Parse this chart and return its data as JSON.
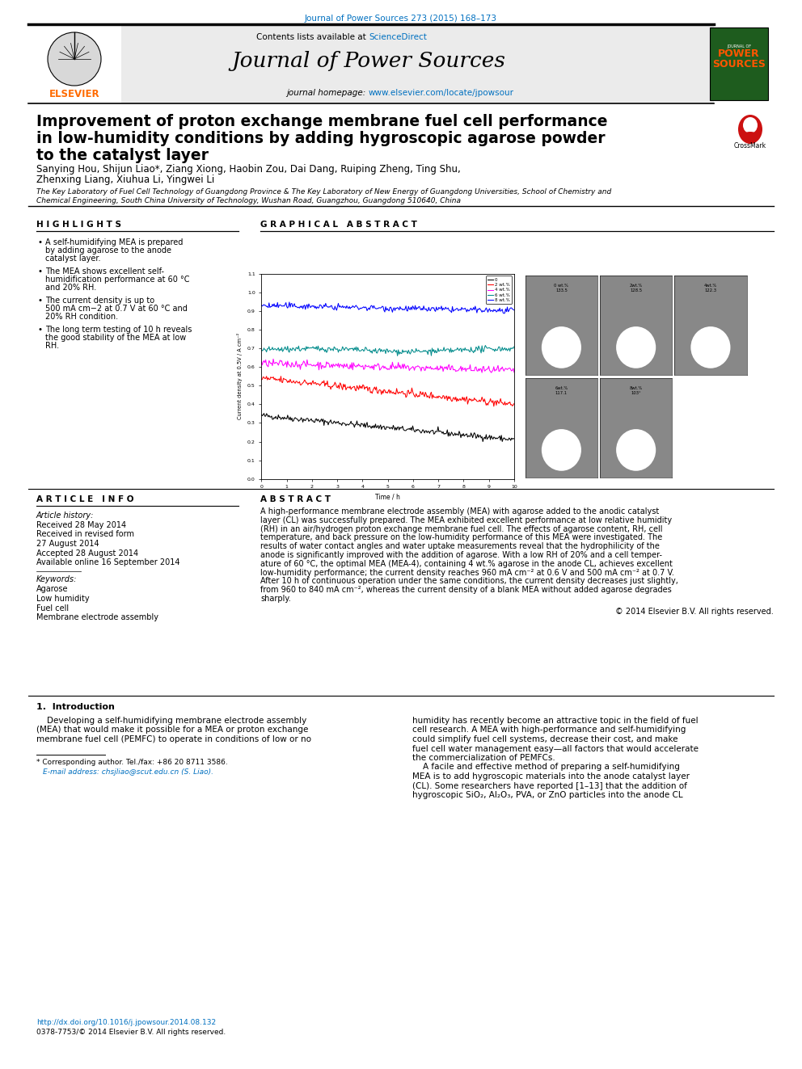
{
  "page_title": "Journal of Power Sources 273 (2015) 168–173",
  "journal_name": "Journal of Power Sources",
  "sciencedirect_text": "Contents lists available at ScienceDirect",
  "journal_homepage_prefix": "journal homepage: ",
  "journal_homepage_url": "www.elsevier.com/locate/jpowsour",
  "paper_title_lines": [
    "Improvement of proton exchange membrane fuel cell performance",
    "in low-humidity conditions by adding hygroscopic agarose powder",
    "to the catalyst layer"
  ],
  "authors_line1": "Sanying Hou, Shijun Liao*, Ziang Xiong, Haobin Zou, Dai Dang, Ruiping Zheng, Ting Shu,",
  "authors_line2": "Zhenxing Liang, Xiuhua Li, Yingwei Li",
  "affiliation_line1": "The Key Laboratory of Fuel Cell Technology of Guangdong Province & The Key Laboratory of New Energy of Guangdong Universities, School of Chemistry and",
  "affiliation_line2": "Chemical Engineering, South China University of Technology, Wushan Road, Guangzhou, Guangdong 510640, China",
  "highlights_title": "H I G H L I G H T S",
  "highlights": [
    "A self-humidifying MEA is prepared\nby adding agarose to the anode\ncatalyst layer.",
    "The MEA shows excellent self-\nhumidification performance at 60 °C\nand 20% RH.",
    "The current density is up to\n500 mA cm−2 at 0.7 V at 60 °C and\n20% RH condition.",
    "The long term testing of 10 h reveals\nthe good stability of the MEA at low\nRH."
  ],
  "graphical_abstract_title": "G R A P H I C A L   A B S T R A C T",
  "article_info_title": "A R T I C L E   I N F O",
  "article_history_title": "Article history:",
  "article_history": [
    "Received 28 May 2014",
    "Received in revised form",
    "27 August 2014",
    "Accepted 28 August 2014",
    "Available online 16 September 2014"
  ],
  "keywords_title": "Keywords:",
  "keywords": [
    "Agarose",
    "Low humidity",
    "Fuel cell",
    "Membrane electrode assembly"
  ],
  "abstract_title": "A B S T R A C T",
  "abstract_lines": [
    "A high-performance membrane electrode assembly (MEA) with agarose added to the anodic catalyst",
    "layer (CL) was successfully prepared. The MEA exhibited excellent performance at low relative humidity",
    "(RH) in an air/hydrogen proton exchange membrane fuel cell. The effects of agarose content, RH, cell",
    "temperature, and back pressure on the low-humidity performance of this MEA were investigated. The",
    "results of water contact angles and water uptake measurements reveal that the hydrophilicity of the",
    "anode is significantly improved with the addition of agarose. With a low RH of 20% and a cell temper-",
    "ature of 60 °C, the optimal MEA (MEA-4), containing 4 wt.% agarose in the anode CL, achieves excellent",
    "low-humidity performance; the current density reaches 960 mA cm⁻² at 0.6 V and 500 mA cm⁻² at 0.7 V.",
    "After 10 h of continuous operation under the same conditions, the current density decreases just slightly,",
    "from 960 to 840 mA cm⁻², whereas the current density of a blank MEA without added agarose degrades",
    "sharply."
  ],
  "copyright_text": "© 2014 Elsevier B.V. All rights reserved.",
  "intro_title": "1.  Introduction",
  "intro_col1_lines": [
    "    Developing a self-humidifying membrane electrode assembly",
    "(MEA) that would make it possible for a MEA or proton exchange",
    "membrane fuel cell (PEMFC) to operate in conditions of low or no"
  ],
  "intro_col2_lines": [
    "humidity has recently become an attractive topic in the field of fuel",
    "cell research. A MEA with high-performance and self-humidifying",
    "could simplify fuel cell systems, decrease their cost, and make",
    "fuel cell water management easy—all factors that would accelerate",
    "the commercialization of PEMFCs.",
    "    A facile and effective method of preparing a self-humidifying",
    "MEA is to add hygroscopic materials into the anode catalyst layer",
    "(CL). Some researchers have reported [1–13] that the addition of",
    "hygroscopic SiO₂, Al₂O₃, PVA, or ZnO particles into the anode CL"
  ],
  "footnote_star": "* Corresponding author. Tel./fax: +86 20 8711 3586.",
  "footnote_email": "E-mail address: chsjliao@scut.edu.cn (S. Liao).",
  "doi": "http://dx.doi.org/10.1016/j.jpowsour.2014.08.132",
  "issn": "0378-7753/© 2014 Elsevier B.V. All rights reserved.",
  "plot_xlabel": "Time / h",
  "plot_ylabel": "Current density at 0.5V / A cm⁻²",
  "plot_legend": [
    "0",
    "2 wt.%",
    "4 wt.%",
    "6 wt.%",
    "8 wt.%"
  ],
  "plot_colors": [
    "black",
    "#FF0000",
    "#FF00FF",
    "#008B8B",
    "#0000FF"
  ],
  "plot_ylim": [
    0.0,
    1.1
  ],
  "plot_xlim": [
    0,
    10
  ],
  "contact_labels": [
    [
      "0 wt.%\n133.5",
      "2wt.%\n128.5",
      "4wt.%\n122.3"
    ],
    [
      "6wt.%\n117.1",
      "8wt.%\n103°",
      ""
    ]
  ],
  "elsevier_color": "#FF6B00",
  "link_color": "#0070C0",
  "bg_color": "#FFFFFF",
  "header_bg": "#EBEBEB",
  "separator_color": "#000000"
}
